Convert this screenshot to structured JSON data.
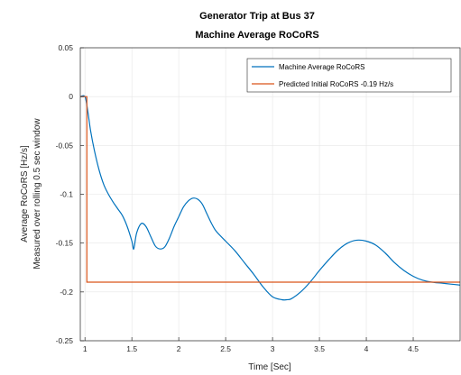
{
  "chart_data": {
    "type": "line",
    "title": "Generator Trip at Bus 37",
    "subtitle": "Machine Average RoCoRS",
    "xlabel": "Time [Sec]",
    "ylabel": [
      "Average RoCoRS [Hz/s]",
      "Measured over rolling 0.5 sec window"
    ],
    "xlim": [
      0.95,
      5.0
    ],
    "ylim": [
      -0.25,
      0.05
    ],
    "xticks": [
      1,
      1.5,
      2,
      2.5,
      3,
      3.5,
      4,
      4.5
    ],
    "xtick_labels": [
      "1",
      "1.5",
      "2",
      "2.5",
      "3",
      "3.5",
      "4",
      "4.5"
    ],
    "yticks": [
      0.05,
      0,
      -0.05,
      -0.1,
      -0.15,
      -0.2,
      -0.25
    ],
    "ytick_labels": [
      "0.05",
      "0",
      "-0.05",
      "-0.1",
      "-0.15",
      "-0.2",
      "-0.25"
    ],
    "grid": true,
    "legend_position": "top-right",
    "series": [
      {
        "name": "Machine Average RoCoRS",
        "color": "#0072BD",
        "x": [
          0.95,
          1.0,
          1.03,
          1.06,
          1.1,
          1.15,
          1.2,
          1.25,
          1.3,
          1.35,
          1.4,
          1.45,
          1.5,
          1.52,
          1.55,
          1.6,
          1.65,
          1.7,
          1.75,
          1.8,
          1.85,
          1.9,
          1.95,
          2.0,
          2.05,
          2.1,
          2.15,
          2.2,
          2.25,
          2.3,
          2.35,
          2.4,
          2.5,
          2.6,
          2.7,
          2.8,
          2.9,
          3.0,
          3.1,
          3.15,
          3.2,
          3.3,
          3.4,
          3.5,
          3.6,
          3.7,
          3.8,
          3.9,
          4.0,
          4.1,
          4.2,
          4.3,
          4.4,
          4.5,
          4.6,
          4.7,
          4.8,
          4.9,
          5.0
        ],
        "y": [
          0,
          0,
          -0.015,
          -0.035,
          -0.055,
          -0.075,
          -0.09,
          -0.1,
          -0.108,
          -0.115,
          -0.122,
          -0.133,
          -0.148,
          -0.156,
          -0.14,
          -0.13,
          -0.133,
          -0.143,
          -0.153,
          -0.156,
          -0.154,
          -0.145,
          -0.133,
          -0.123,
          -0.113,
          -0.107,
          -0.104,
          -0.105,
          -0.11,
          -0.12,
          -0.13,
          -0.138,
          -0.148,
          -0.158,
          -0.17,
          -0.182,
          -0.195,
          -0.205,
          -0.208,
          -0.208,
          -0.207,
          -0.2,
          -0.19,
          -0.178,
          -0.167,
          -0.157,
          -0.15,
          -0.147,
          -0.148,
          -0.152,
          -0.16,
          -0.17,
          -0.178,
          -0.184,
          -0.188,
          -0.19,
          -0.191,
          -0.192,
          -0.193
        ]
      },
      {
        "name": "Predicted Initial RoCoRS -0.19 Hz/s",
        "color": "#D95319",
        "x": [
          0.95,
          1.0,
          1.0,
          1.02,
          1.02,
          5.0
        ],
        "y": [
          0,
          0,
          0,
          0,
          -0.19,
          -0.19
        ]
      }
    ]
  }
}
